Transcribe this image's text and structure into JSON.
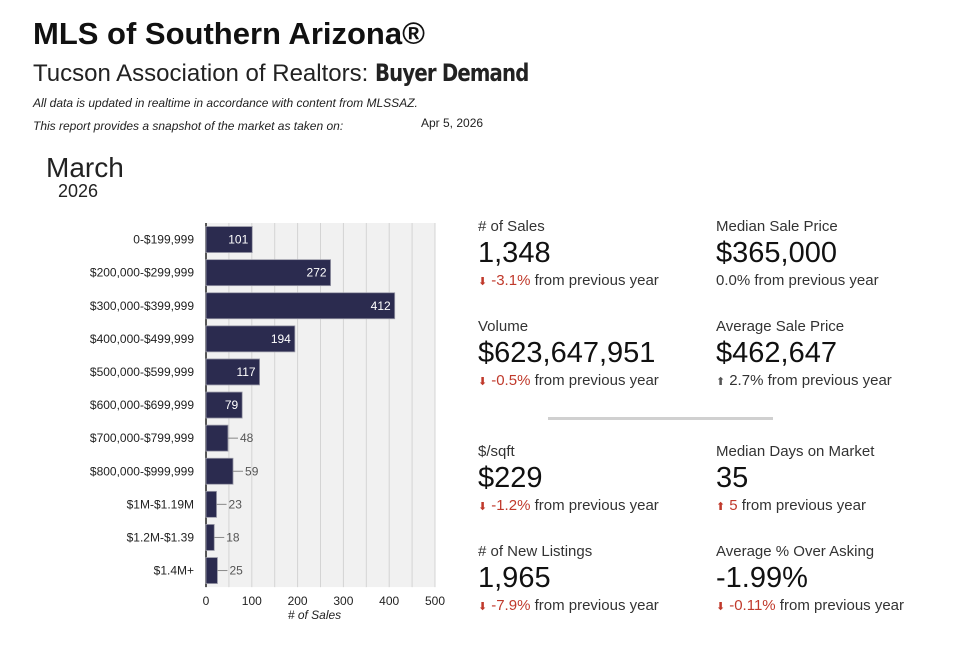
{
  "header": {
    "title": "MLS of Southern Arizona®",
    "subtitle_prefix": "Tucson Association of Realtors: ",
    "subtitle_bold": "Buyer Demand",
    "note1": "All data is updated in realtime in accordance with content from MLSSAZ.",
    "note2": "This report provides a snapshot of the market as taken on:",
    "snapshot_date": "Apr 5, 2026",
    "month": "March",
    "year": "2026"
  },
  "chart_data": {
    "type": "bar",
    "orientation": "horizontal",
    "categories": [
      "0-$199,999",
      "$200,000-$299,999",
      "$300,000-$399,999",
      "$400,000-$499,999",
      "$500,000-$599,999",
      "$600,000-$699,999",
      "$700,000-$799,999",
      "$800,000-$999,999",
      "$1M-$1.19M",
      "$1.2M-$1.39",
      "$1.4M+"
    ],
    "values": [
      101,
      272,
      412,
      194,
      117,
      79,
      48,
      59,
      23,
      18,
      25
    ],
    "xlabel": "# of Sales",
    "xlim": [
      0,
      500
    ],
    "xticks": [
      0,
      100,
      200,
      300,
      400,
      500
    ],
    "grid": true,
    "bar_color": "#2b2b4f"
  },
  "kpis": [
    {
      "label": "# of Sales",
      "value": "1,348",
      "change": "-3.1%",
      "suffix": " from previous year",
      "arrow": "down",
      "change_color": "red"
    },
    {
      "label": "Median Sale Price",
      "value": "$365,000",
      "change": "0.0%",
      "suffix": " from previous year",
      "arrow": "none",
      "change_color": "plain"
    },
    {
      "label": "Volume",
      "value": "$623,647,951",
      "change": "-0.5%",
      "suffix": " from previous year",
      "arrow": "down",
      "change_color": "red"
    },
    {
      "label": "Average Sale Price",
      "value": "$462,647",
      "change": "2.7%",
      "suffix": " from previous year",
      "arrow": "up-gray",
      "change_color": "plain"
    },
    {
      "label": "$/sqft",
      "value": "$229",
      "change": "-1.2%",
      "suffix": " from previous year",
      "arrow": "down",
      "change_color": "red"
    },
    {
      "label": "Median Days on Market",
      "value": "35",
      "change": "5",
      "suffix": " from previous year",
      "arrow": "up-red",
      "change_color": "red"
    },
    {
      "label": "# of New Listings",
      "value": "1,965",
      "change": "-7.9%",
      "suffix": " from previous year",
      "arrow": "down",
      "change_color": "red"
    },
    {
      "label": "Average % Over Asking",
      "value": "-1.99%",
      "change": "-0.11%",
      "suffix": " from previous year",
      "arrow": "down",
      "change_color": "red"
    }
  ]
}
